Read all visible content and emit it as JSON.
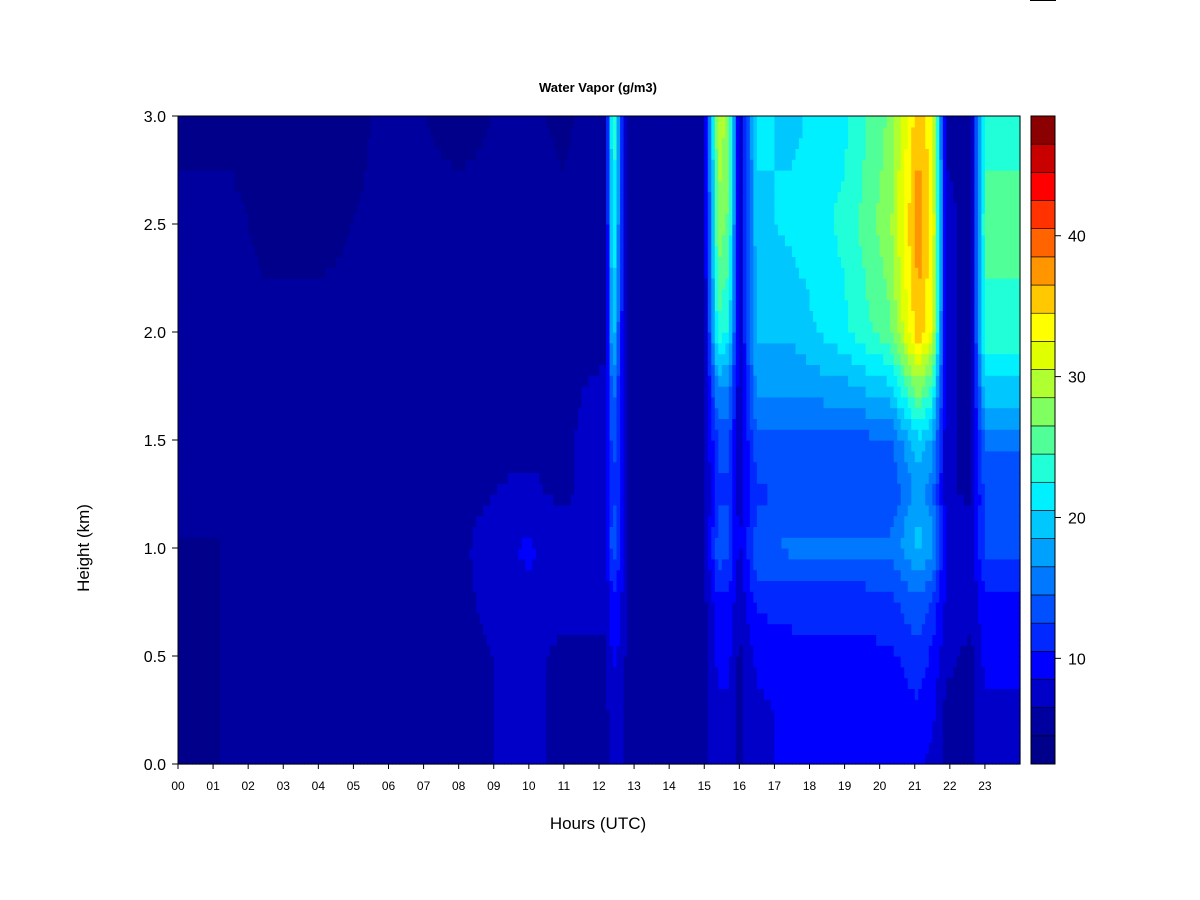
{
  "chart_data": {
    "type": "heatmap",
    "title": "Water Vapor (g/m3)",
    "xlabel": "Hours (UTC)",
    "ylabel": "Height (km)",
    "xlim": [
      0,
      24
    ],
    "ylim": [
      0,
      3.0
    ],
    "x_ticks": [
      "00",
      "01",
      "02",
      "03",
      "04",
      "05",
      "06",
      "07",
      "08",
      "09",
      "10",
      "11",
      "12",
      "13",
      "14",
      "15",
      "16",
      "17",
      "18",
      "19",
      "20",
      "21",
      "22",
      "23"
    ],
    "y_ticks": [
      "0.0",
      "0.5",
      "1.0",
      "1.5",
      "2.0",
      "2.5",
      "3.0"
    ],
    "colorbar": {
      "min": 2.5,
      "max": 48.5,
      "levels": 23,
      "ticks": [
        10,
        20,
        30,
        40
      ],
      "colors": [
        "#00008b",
        "#00009f",
        "#0000c8",
        "#0000ff",
        "#0028ff",
        "#0050ff",
        "#0078ff",
        "#00a0ff",
        "#00c8ff",
        "#00f0ff",
        "#20ffd8",
        "#50ff98",
        "#80ff60",
        "#b0ff30",
        "#e0ff00",
        "#ffff00",
        "#ffc800",
        "#ff9600",
        "#ff6400",
        "#ff3200",
        "#ff0000",
        "#c80000",
        "#8b0000"
      ]
    },
    "profile_heights_km": [
      0.0,
      0.25,
      0.5,
      0.75,
      1.0,
      1.1,
      1.25,
      1.5,
      1.75,
      2.0,
      2.5,
      3.0
    ],
    "profiles": [
      {
        "hour": 0.0,
        "values": [
          4,
          4,
          4,
          4,
          4,
          5,
          5,
          5,
          5,
          5,
          5,
          4
        ]
      },
      {
        "hour": 1.0,
        "values": [
          4,
          4,
          4,
          4,
          4,
          5,
          5,
          5,
          5,
          5,
          5,
          4
        ]
      },
      {
        "hour": 1.5,
        "values": [
          5,
          5,
          5,
          5,
          5,
          5,
          5,
          5,
          5,
          5,
          5,
          4
        ]
      },
      {
        "hour": 2.5,
        "values": [
          5,
          5,
          5,
          5,
          5,
          5,
          5,
          5,
          5,
          5,
          4,
          3
        ]
      },
      {
        "hour": 4.0,
        "values": [
          5,
          5,
          5,
          5,
          5,
          5,
          5,
          5,
          5,
          5,
          4,
          3
        ]
      },
      {
        "hour": 6.0,
        "values": [
          6,
          6,
          5,
          5,
          5,
          5,
          5,
          5,
          5,
          5,
          5,
          5
        ]
      },
      {
        "hour": 8.0,
        "values": [
          6,
          6,
          6,
          6,
          6,
          6,
          6,
          6,
          6,
          5,
          5,
          4
        ]
      },
      {
        "hour": 10.0,
        "values": [
          7,
          7,
          7,
          8,
          9,
          8,
          7,
          6,
          6,
          6,
          5,
          5
        ]
      },
      {
        "hour": 11.0,
        "values": [
          6,
          6,
          6,
          7,
          7,
          7,
          6,
          6,
          6,
          5,
          5,
          4
        ]
      },
      {
        "hour": 12.2,
        "values": [
          6,
          6,
          6,
          7,
          8,
          8,
          8,
          8,
          7,
          6,
          6,
          6
        ]
      },
      {
        "hour": 12.4,
        "values": [
          7,
          8,
          9,
          10,
          14,
          14,
          12,
          14,
          16,
          21,
          24,
          26
        ]
      },
      {
        "hour": 12.6,
        "values": [
          7,
          7,
          8,
          9,
          11,
          12,
          11,
          10,
          11,
          12,
          14,
          15
        ]
      },
      {
        "hour": 12.8,
        "values": [
          6,
          6,
          6,
          6,
          6,
          6,
          6,
          6,
          5,
          5,
          5,
          5
        ]
      },
      {
        "hour": 15.0,
        "values": [
          6,
          6,
          6,
          6,
          6,
          6,
          6,
          6,
          6,
          6,
          6,
          6
        ]
      },
      {
        "hour": 15.4,
        "values": [
          8,
          8,
          9,
          10,
          14,
          13,
          12,
          13,
          17,
          24,
          28,
          30
        ]
      },
      {
        "hour": 15.7,
        "values": [
          8,
          8,
          9,
          10,
          13,
          13,
          12,
          13,
          16,
          22,
          26,
          28
        ]
      },
      {
        "hour": 16.0,
        "values": [
          6,
          6,
          6,
          7,
          8,
          8,
          7,
          7,
          7,
          7,
          7,
          7
        ]
      },
      {
        "hour": 16.5,
        "values": [
          8,
          8,
          9,
          11,
          14,
          13,
          12,
          14,
          17,
          19,
          20,
          21
        ]
      },
      {
        "hour": 17.5,
        "values": [
          9,
          9,
          10,
          11,
          15,
          14,
          13,
          14,
          17,
          19,
          21,
          20
        ]
      },
      {
        "hour": 19.0,
        "values": [
          9,
          9,
          10,
          11,
          15,
          14,
          13,
          14,
          18,
          22,
          23,
          22
        ]
      },
      {
        "hour": 20.3,
        "values": [
          9,
          9,
          10,
          12,
          15,
          14,
          13,
          14,
          20,
          26,
          28,
          27
        ]
      },
      {
        "hour": 21.1,
        "values": [
          9,
          10,
          12,
          14,
          19,
          19,
          17,
          20,
          28,
          36,
          38,
          36
        ]
      },
      {
        "hour": 21.5,
        "values": [
          8,
          9,
          10,
          12,
          17,
          17,
          15,
          18,
          24,
          32,
          34,
          33
        ]
      },
      {
        "hour": 21.9,
        "values": [
          6,
          6,
          7,
          8,
          8,
          8,
          7,
          7,
          7,
          7,
          7,
          6
        ]
      },
      {
        "hour": 22.6,
        "values": [
          6,
          6,
          6,
          7,
          7,
          7,
          6,
          6,
          6,
          6,
          6,
          6
        ]
      },
      {
        "hour": 23.0,
        "values": [
          8,
          8,
          9,
          10,
          13,
          13,
          13,
          15,
          20,
          24,
          25,
          24
        ]
      },
      {
        "hour": 23.9,
        "values": [
          8,
          8,
          9,
          10,
          13,
          13,
          13,
          15,
          20,
          24,
          25,
          24
        ]
      }
    ]
  },
  "top_right_mark_color": "#000000"
}
